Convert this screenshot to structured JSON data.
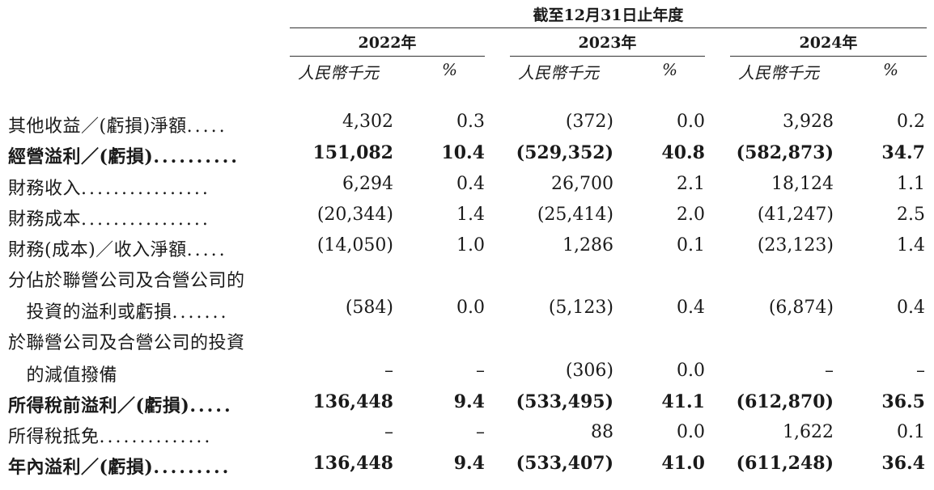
{
  "header": {
    "period": "截至12月31日止年度",
    "years": [
      "2022年",
      "2023年",
      "2024年"
    ],
    "unit_amount": "人民幣千元",
    "unit_pct": "%"
  },
  "rows": [
    {
      "label": "其他收益／(虧損)淨額",
      "dots": ".....",
      "bold": false,
      "values": [
        "4,302",
        "0.3",
        "(372)",
        "0.0",
        "3,928",
        "0.2"
      ]
    },
    {
      "label": "經營溢利／(虧損)",
      "dots": "..........",
      "bold": true,
      "values": [
        "151,082",
        "10.4",
        "(529,352)",
        "40.8",
        "(582,873)",
        "34.7"
      ]
    },
    {
      "label": "財務收入",
      "dots": "................",
      "bold": false,
      "values": [
        "6,294",
        "0.4",
        "26,700",
        "2.1",
        "18,124",
        "1.1"
      ]
    },
    {
      "label": "財務成本",
      "dots": "................",
      "bold": false,
      "values": [
        "(20,344)",
        "1.4",
        "(25,414)",
        "2.0",
        "(41,247)",
        "2.5"
      ]
    },
    {
      "label": "財務(成本)／收入淨額",
      "dots": ".....",
      "bold": false,
      "values": [
        "(14,050)",
        "1.0",
        "1,286",
        "0.1",
        "(23,123)",
        "1.4"
      ]
    },
    {
      "label": "分佔於聯營公司及合營公司的",
      "dots": "",
      "bold": false,
      "values": [
        "",
        "",
        "",
        "",
        "",
        ""
      ]
    },
    {
      "label": "　投資的溢利或虧損",
      "dots": ".......",
      "bold": false,
      "values": [
        "(584)",
        "0.0",
        "(5,123)",
        "0.4",
        "(6,874)",
        "0.4"
      ]
    },
    {
      "label": "於聯營公司及合營公司的投資",
      "dots": "",
      "bold": false,
      "values": [
        "",
        "",
        "",
        "",
        "",
        ""
      ]
    },
    {
      "label": "　的減值撥備",
      "dots": "",
      "bold": false,
      "values": [
        "–",
        "–",
        "(306)",
        "0.0",
        "–",
        "–"
      ]
    },
    {
      "label": "所得稅前溢利／(虧損)",
      "dots": ".....",
      "bold": true,
      "values": [
        "136,448",
        "9.4",
        "(533,495)",
        "41.1",
        "(612,870)",
        "36.5"
      ]
    },
    {
      "label": "所得稅抵免",
      "dots": "..............",
      "bold": false,
      "values": [
        "–",
        "–",
        "88",
        "0.0",
        "1,622",
        "0.1"
      ]
    },
    {
      "label": "年內溢利／(虧損)",
      "dots": ".........",
      "bold": true,
      "values": [
        "136,448",
        "9.4",
        "(533,407)",
        "41.0",
        "(611,248)",
        "36.4"
      ]
    }
  ]
}
